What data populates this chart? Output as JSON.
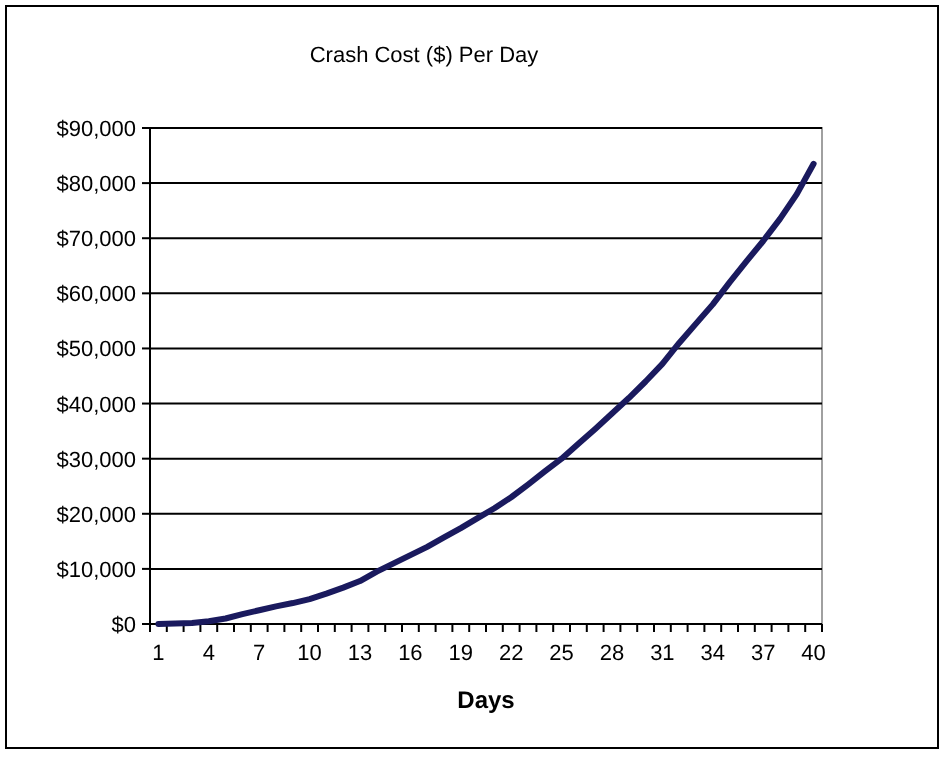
{
  "chart_data": {
    "type": "line",
    "title": "Crash Cost ($) Per Day",
    "xlabel": "Days",
    "categories": [
      "1",
      null,
      null,
      "4",
      null,
      null,
      "7",
      null,
      null,
      "10",
      null,
      null,
      "13",
      null,
      null,
      "16",
      null,
      null,
      "19",
      null,
      null,
      "22",
      null,
      null,
      "25",
      null,
      null,
      "28",
      null,
      null,
      "31",
      null,
      null,
      "34",
      null,
      null,
      "37",
      null,
      null,
      "40"
    ],
    "series": [
      {
        "color": "#1a1a5e",
        "values": [
          0,
          100,
          200,
          500,
          1000,
          1800,
          2500,
          3200,
          3800,
          4500,
          5500,
          6600,
          7800,
          9500,
          11000,
          12500,
          14000,
          15700,
          17400,
          19200,
          21000,
          23000,
          25300,
          27700,
          30000,
          32700,
          35400,
          38200,
          41000,
          44000,
          47200,
          51000,
          54500,
          58000,
          62000,
          65800,
          69500,
          73500,
          78000,
          83500
        ]
      }
    ],
    "ylim": [
      0,
      90000
    ],
    "yticks": [
      {
        "value": 0,
        "label": "$0"
      },
      {
        "value": 10000,
        "label": "$10,000"
      },
      {
        "value": 20000,
        "label": "$20,000"
      },
      {
        "value": 30000,
        "label": "$30,000"
      },
      {
        "value": 40000,
        "label": "$40,000"
      },
      {
        "value": 50000,
        "label": "$50,000"
      },
      {
        "value": 60000,
        "label": "$60,000"
      },
      {
        "value": 70000,
        "label": "$70,000"
      },
      {
        "value": 80000,
        "label": "$80,000"
      },
      {
        "value": 90000,
        "label": "$90,000"
      }
    ],
    "grid": "y",
    "marker": "none",
    "line_style": "solid"
  }
}
